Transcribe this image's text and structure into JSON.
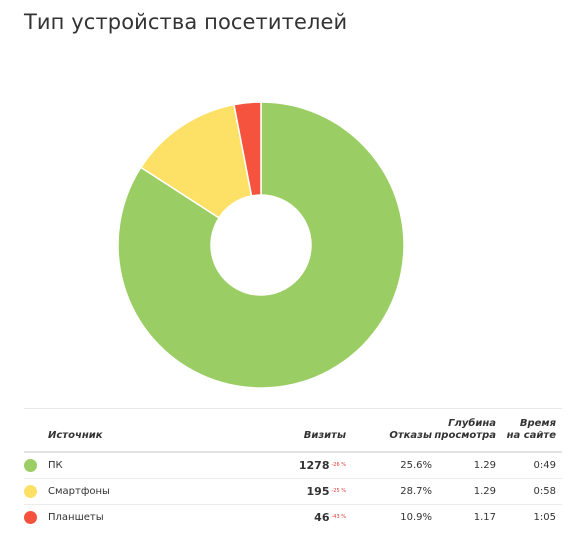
{
  "title": "Тип устройства посетителей",
  "colors": {
    "pc": "#9acd63",
    "smartphones": "#fde166",
    "tablets": "#f5533d"
  },
  "chart_data": {
    "type": "pie",
    "donut": true,
    "title": "Тип устройства посетителей",
    "categories": [
      "ПК",
      "Смартфоны",
      "Планшеты"
    ],
    "values": [
      1278,
      195,
      46
    ]
  },
  "table": {
    "headers": {
      "source": "Источник",
      "visits": "Визиты",
      "bounce": "Отказы",
      "depth_line1": "Глубина",
      "depth_line2": "просмотра",
      "time_line1": "Время",
      "time_line2": "на сайте"
    },
    "rows": [
      {
        "name": "ПК",
        "color": "#9acd63",
        "visits": "1278",
        "change": "-26 %",
        "bounce": "25.6%",
        "depth": "1.29",
        "time": "0:49"
      },
      {
        "name": "Смартфоны",
        "color": "#fde166",
        "visits": "195",
        "change": "-25 %",
        "bounce": "28.7%",
        "depth": "1.29",
        "time": "0:58"
      },
      {
        "name": "Планшеты",
        "color": "#f5533d",
        "visits": "46",
        "change": "-43 %",
        "bounce": "10.9%",
        "depth": "1.17",
        "time": "1:05"
      }
    ]
  }
}
